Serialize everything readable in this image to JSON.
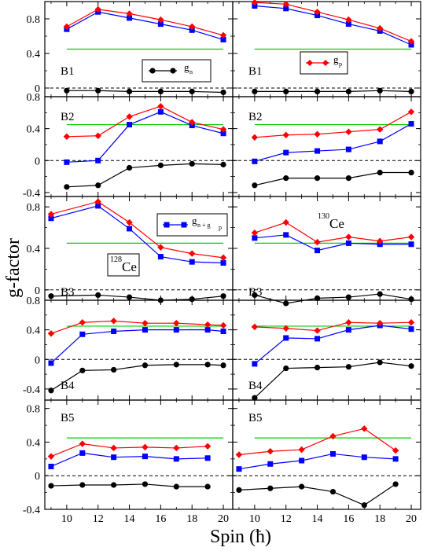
{
  "figure": {
    "ylabel": "g-factor",
    "xlabel": "Spin (ħ)"
  },
  "colors": {
    "gn": "#000000",
    "gp": "#ff0000",
    "total": "#0000ff",
    "reference": "#00cc00",
    "zero_line": "#000000"
  },
  "legend": {
    "gn": {
      "main": "g",
      "sub": "n"
    },
    "gp": {
      "main": "g",
      "sub": "p"
    },
    "total": {
      "main": "g",
      "sub": "n + g",
      "sub2": "p"
    }
  },
  "nuclei": {
    "left": {
      "mass": "128",
      "symbol": "Ce"
    },
    "right": {
      "mass": "130",
      "symbol": "Ce"
    }
  },
  "chart_data": {
    "type": "line",
    "x_ticks": [
      10,
      12,
      14,
      16,
      18,
      20
    ],
    "reference_value": 0.45,
    "rows": [
      {
        "label": "B1",
        "ylim": [
          -0.1,
          1.0
        ],
        "y_ticks": [
          0,
          0.4,
          0.8
        ],
        "panels": [
          {
            "nucleus": "128Ce",
            "x": [
              10,
              12,
              14,
              16,
              18,
              20
            ],
            "gn": [
              -0.03,
              -0.03,
              -0.04,
              -0.04,
              -0.04,
              -0.05
            ],
            "gp": [
              0.71,
              0.91,
              0.86,
              0.79,
              0.71,
              0.61
            ],
            "total": [
              0.68,
              0.88,
              0.81,
              0.74,
              0.67,
              0.56
            ]
          },
          {
            "nucleus": "130Ce",
            "x": [
              10,
              12,
              14,
              16,
              18,
              20
            ],
            "gn": [
              -0.04,
              -0.04,
              -0.04,
              -0.04,
              -0.03,
              -0.04
            ],
            "gp": [
              0.99,
              0.97,
              0.88,
              0.79,
              0.69,
              0.54
            ],
            "total": [
              0.95,
              0.92,
              0.84,
              0.74,
              0.66,
              0.5
            ]
          }
        ]
      },
      {
        "label": "B2",
        "ylim": [
          -0.45,
          0.8
        ],
        "y_ticks": [
          -0.4,
          0,
          0.4,
          0.8
        ],
        "panels": [
          {
            "nucleus": "128Ce",
            "x": [
              10,
              12,
              14,
              16,
              18,
              20
            ],
            "gn": [
              -0.33,
              -0.31,
              -0.09,
              -0.06,
              -0.04,
              -0.05
            ],
            "gp": [
              0.3,
              0.31,
              0.55,
              0.68,
              0.48,
              0.39
            ],
            "total": [
              -0.02,
              0.0,
              0.45,
              0.61,
              0.44,
              0.34
            ]
          },
          {
            "nucleus": "130Ce",
            "x": [
              10,
              12,
              14,
              16,
              18,
              20
            ],
            "gn": [
              -0.31,
              -0.22,
              -0.22,
              -0.22,
              -0.15,
              -0.15
            ],
            "gp": [
              0.29,
              0.32,
              0.33,
              0.36,
              0.39,
              0.61
            ],
            "total": [
              -0.01,
              0.1,
              0.12,
              0.14,
              0.24,
              0.46
            ]
          }
        ]
      },
      {
        "label": "B3",
        "ylim": [
          -0.1,
          0.9
        ],
        "y_ticks": [
          0,
          0.4,
          0.8
        ],
        "panels": [
          {
            "nucleus": "128Ce",
            "x": [
              9,
              12,
              14,
              16,
              18,
              20
            ],
            "gn": [
              -0.06,
              -0.05,
              -0.07,
              -0.1,
              -0.09,
              -0.06
            ],
            "gp": [
              0.73,
              0.85,
              0.65,
              0.41,
              0.35,
              0.31
            ],
            "total": [
              0.69,
              0.81,
              0.59,
              0.32,
              0.27,
              0.26
            ]
          },
          {
            "nucleus": "130Ce",
            "x": [
              10,
              12,
              14,
              16,
              18,
              20
            ],
            "gn": [
              -0.05,
              -0.13,
              -0.08,
              -0.07,
              -0.04,
              -0.09
            ],
            "gp": [
              0.55,
              0.65,
              0.46,
              0.51,
              0.47,
              0.51
            ],
            "total": [
              0.5,
              0.53,
              0.38,
              0.45,
              0.44,
              0.44
            ]
          }
        ]
      },
      {
        "label": "B4",
        "ylim": [
          -0.55,
          0.8
        ],
        "y_ticks": [
          -0.4,
          0,
          0.4,
          0.8
        ],
        "panels": [
          {
            "nucleus": "128Ce",
            "x": [
              9,
              11,
              13,
              15,
              17,
              19,
              20
            ],
            "gn": [
              -0.42,
              -0.15,
              -0.14,
              -0.08,
              -0.07,
              -0.07,
              -0.08
            ],
            "gp": [
              0.35,
              0.5,
              0.52,
              0.49,
              0.49,
              0.47,
              0.46
            ],
            "total": [
              -0.05,
              0.34,
              0.38,
              0.4,
              0.4,
              0.4,
              0.38
            ]
          },
          {
            "nucleus": "130Ce",
            "x": [
              10,
              12,
              14,
              16,
              18,
              20
            ],
            "gn": [
              -0.52,
              -0.12,
              -0.11,
              -0.1,
              -0.04,
              -0.09
            ],
            "gp": [
              0.44,
              0.42,
              0.39,
              0.5,
              0.49,
              0.5
            ],
            "total": [
              -0.06,
              0.29,
              0.28,
              0.4,
              0.46,
              0.41
            ]
          }
        ]
      },
      {
        "label": "B5",
        "ylim": [
          -0.4,
          0.9
        ],
        "y_ticks": [
          -0.4,
          0,
          0.4,
          0.8
        ],
        "panels": [
          {
            "nucleus": "128Ce",
            "x": [
              9,
              11,
              13,
              15,
              17,
              19
            ],
            "gn": [
              -0.12,
              -0.11,
              -0.11,
              -0.1,
              -0.13,
              -0.13
            ],
            "gp": [
              0.23,
              0.38,
              0.33,
              0.34,
              0.33,
              0.35
            ],
            "total": [
              0.11,
              0.27,
              0.22,
              0.23,
              0.2,
              0.21
            ]
          },
          {
            "nucleus": "130Ce",
            "x": [
              9,
              11,
              13,
              15,
              17,
              19
            ],
            "gn": [
              -0.17,
              -0.15,
              -0.13,
              -0.19,
              -0.35,
              -0.1
            ],
            "gp": [
              0.25,
              0.29,
              0.31,
              0.47,
              0.56,
              0.3
            ],
            "total": [
              0.08,
              0.14,
              0.18,
              0.26,
              0.22,
              0.2
            ]
          }
        ]
      }
    ]
  }
}
